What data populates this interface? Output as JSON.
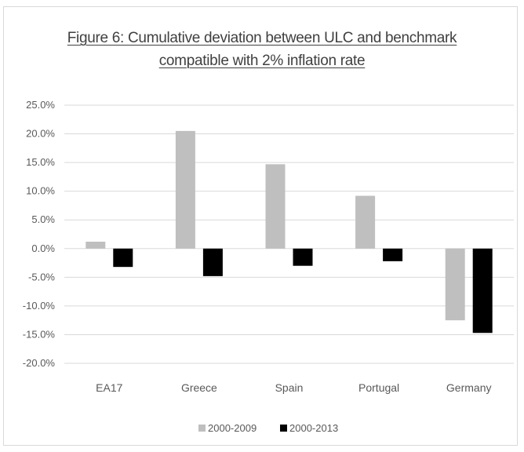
{
  "chart_data": {
    "type": "bar",
    "title_line1": "Figure 6: Cumulative deviation between ULC and benchmark",
    "title_line2": "compatible with 2% inflation rate",
    "categories": [
      "EA17",
      "Greece",
      "Spain",
      "Portugal",
      "Germany"
    ],
    "series": [
      {
        "name": "2000-2009",
        "color": "#bfbfbf",
        "values": [
          1.2,
          20.5,
          14.7,
          9.2,
          -12.5
        ]
      },
      {
        "name": "2000-2013",
        "color": "#000000",
        "values": [
          -3.2,
          -4.8,
          -3.0,
          -2.2,
          -14.7
        ]
      }
    ],
    "y_ticks": [
      25,
      20,
      15,
      10,
      5,
      0,
      -5,
      -10,
      -15,
      -20
    ],
    "y_tick_labels": [
      "25.0%",
      "20.0%",
      "15.0%",
      "10.0%",
      "5.0%",
      "0.0%",
      "-5.0%",
      "-10.0%",
      "-15.0%",
      "-20.0%"
    ],
    "ylim": [
      -20,
      25
    ],
    "grid": true,
    "legend_position": "bottom"
  }
}
